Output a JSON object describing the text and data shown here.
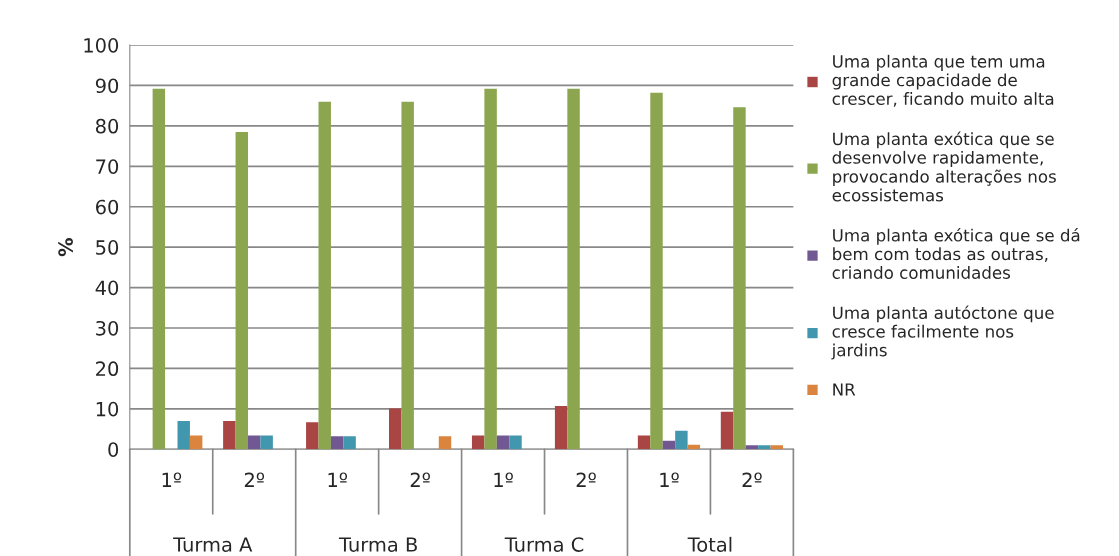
{
  "chart_data": {
    "type": "bar",
    "ylabel": "%",
    "categories": [
      "1º",
      "2º",
      "1º",
      "2º",
      "1º",
      "2º",
      "1º",
      "2º"
    ],
    "annotations": [
      "Turma A",
      "Turma B",
      "Turma C",
      "Total"
    ],
    "series": [
      {
        "name": "Uma planta que tem uma grande capacidade de crescer, ficando muito alta",
        "color": "#a94543",
        "values": [
          null,
          7.0,
          6.7,
          10.1,
          3.4,
          10.7,
          3.4,
          9.3
        ]
      },
      {
        "name": "Uma planta exótica que se desenvolve rapidamente, provocando alterações nos ecossistemas",
        "color": "#8ba64e",
        "values": [
          89.2,
          78.5,
          86.0,
          86.0,
          89.2,
          89.2,
          88.2,
          84.6
        ]
      },
      {
        "name": "Uma planta exótica que se dá bem com todas as outras, criando comunidades",
        "color": "#715892",
        "values": [
          null,
          3.4,
          3.2,
          null,
          3.4,
          null,
          2.1,
          1.0
        ]
      },
      {
        "name": "Uma planta autóctone que cresce facilmente nos jardins",
        "color": "#4197ae",
        "values": [
          7.0,
          3.4,
          3.2,
          null,
          3.4,
          null,
          4.6,
          1.0
        ]
      },
      {
        "name": "NR",
        "color": "#db843d",
        "values": [
          3.4,
          null,
          null,
          3.2,
          null,
          null,
          1.1,
          1.0
        ]
      }
    ],
    "ylim": [
      0,
      100
    ],
    "yticks": [
      0,
      10,
      20,
      30,
      40,
      50,
      60,
      70,
      80,
      90,
      100
    ],
    "grid": "y",
    "legend": "right"
  }
}
